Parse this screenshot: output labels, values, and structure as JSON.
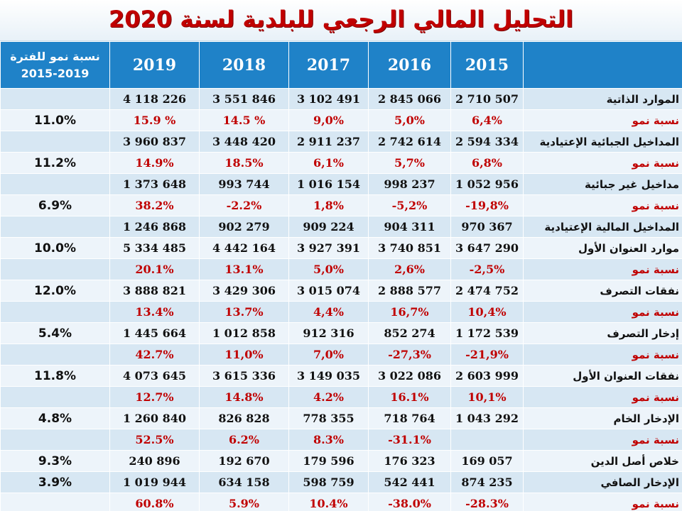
{
  "title": "التحليل المالي الرجعي للبلدية لسنة 2020",
  "header": {
    "growth_col": "نسبة نمو للفترة 2019-2015",
    "years": [
      "2019",
      "2018",
      "2017",
      "2016",
      "2015"
    ]
  },
  "rows": [
    {
      "label": "الموارد الذاتية",
      "kind": "val",
      "growth": "",
      "values": [
        "4 118 226",
        "3 551 846",
        "3 102 491",
        "2 845 066",
        "2 710 507"
      ]
    },
    {
      "label": "نسبة نمو",
      "kind": "pct",
      "growth": "11.0%",
      "values": [
        "15.9 %",
        "14.5 %",
        "9,0%",
        "5,0%",
        "6,4%"
      ]
    },
    {
      "label": "المداخيل الجبائية الإعتيادية",
      "kind": "val",
      "growth": "",
      "values": [
        "3 960 837",
        "3 448 420",
        "2 911 237",
        "2 742 614",
        "2 594 334"
      ]
    },
    {
      "label": "نسبة نمو",
      "kind": "pct",
      "growth": "11.2%",
      "values": [
        "14.9%",
        "18.5%",
        "6,1%",
        "5,7%",
        "6,8%"
      ]
    },
    {
      "label": "مداخيل غير جبائية",
      "kind": "val",
      "growth": "",
      "values": [
        "1 373 648",
        "993 744",
        "1 016 154",
        "998 237",
        "1 052 956"
      ]
    },
    {
      "label": "نسبة نمو",
      "kind": "pct",
      "growth": "6.9%",
      "values": [
        "38.2%",
        "-2.2%",
        "1,8%",
        "-5,2%",
        "-19,8%"
      ]
    },
    {
      "label": "المداخيل المالية الإعتيادية",
      "kind": "val",
      "growth": "",
      "values": [
        "1 246 868",
        "902 279",
        "909 224",
        "904 311",
        "970 367"
      ]
    },
    {
      "label": "موارد العنوان الأول",
      "kind": "val",
      "growth": "10.0%",
      "values": [
        "5 334 485",
        "4 442 164",
        "3 927 391",
        "3 740 851",
        "3 647 290"
      ]
    },
    {
      "label": "نسبة نمو",
      "kind": "pct",
      "growth": "",
      "values": [
        "20.1%",
        "13.1%",
        "5,0%",
        "2,6%",
        "-2,5%"
      ]
    },
    {
      "label": "نفقات التصرف",
      "kind": "val",
      "growth": "12.0%",
      "values": [
        "3 888 821",
        "3 429 306",
        "3 015 074",
        "2 888 577",
        "2 474 752"
      ]
    },
    {
      "label": "نسبة نمو",
      "kind": "pct",
      "growth": "",
      "values": [
        "13.4%",
        "13.7%",
        "4,4%",
        "16,7%",
        "10,4%"
      ]
    },
    {
      "label": "إدخار التصرف",
      "kind": "val",
      "growth": "5.4%",
      "values": [
        "1 445 664",
        "1 012 858",
        "912 316",
        "852 274",
        "1 172 539"
      ]
    },
    {
      "label": "نسبة نمو",
      "kind": "pct",
      "growth": "",
      "values": [
        "42.7%",
        "11,0%",
        "7,0%",
        "-27,3%",
        "-21,9%"
      ]
    },
    {
      "label": "نفقات العنوان الأول",
      "kind": "val",
      "growth": "11.8%",
      "values": [
        "4 073 645",
        "3 615 336",
        "3 149 035",
        "3 022 086",
        "2 603 999"
      ]
    },
    {
      "label": "نسبة نمو",
      "kind": "pct",
      "growth": "",
      "values": [
        "12.7%",
        "14.8%",
        "4.2%",
        "16.1%",
        "10,1%"
      ]
    },
    {
      "label": "الإدخار الخام",
      "kind": "val",
      "growth": "4.8%",
      "values": [
        "1 260 840",
        "826 828",
        "778 355",
        "718 764",
        "1 043 292"
      ]
    },
    {
      "label": "نسبة نمو",
      "kind": "pct",
      "growth": "",
      "values": [
        "52.5%",
        "6.2%",
        "8.3%",
        "-31.1%",
        ""
      ]
    },
    {
      "label": "خلاص أصل الدين",
      "kind": "val",
      "growth": "9.3%",
      "values": [
        "240 896",
        "192 670",
        "179 596",
        "176 323",
        "169 057"
      ]
    },
    {
      "label": "الإدخار الصافي",
      "kind": "val",
      "growth": "3.9%",
      "values": [
        "1 019 944",
        "634 158",
        "598 759",
        "542 441",
        "874 235"
      ]
    },
    {
      "label": "نسبة نمو",
      "kind": "pct",
      "growth": "",
      "values": [
        "60.8%",
        "5.9%",
        "10.4%",
        "-38.0%",
        "-28.3%"
      ]
    }
  ],
  "colors": {
    "header_bg": "#1f82c8",
    "row_even": "#d7e7f3",
    "row_odd": "#edf4fa",
    "accent_red": "#c00000"
  }
}
